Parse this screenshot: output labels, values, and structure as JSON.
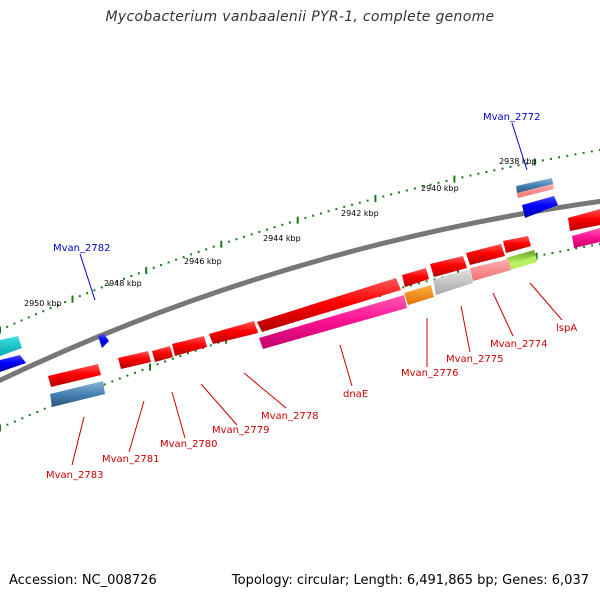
{
  "title": "Mycobacterium vanbaalenii PYR-1, complete genome",
  "footer": {
    "accession": "Accession: NC_008726",
    "summary": "Topology: circular; Length: 6,491,865 bp; Genes: 6,037"
  },
  "scale_labels": [
    "2938 kbp",
    "2940 kbp",
    "2942 kbp",
    "2944 kbp",
    "2946 kbp",
    "2948 kbp",
    "2950 kbp"
  ],
  "gene_labels": [
    {
      "text": "Mvan_2772",
      "color": "#0000cc"
    },
    {
      "text": "Mvan_2782",
      "color": "#0000cc"
    },
    {
      "text": "lspA",
      "color": "#cc0000"
    },
    {
      "text": "Mvan_2774",
      "color": "#cc0000"
    },
    {
      "text": "Mvan_2775",
      "color": "#cc0000"
    },
    {
      "text": "Mvan_2776",
      "color": "#cc0000"
    },
    {
      "text": "dnaE",
      "color": "#cc0000"
    },
    {
      "text": "Mvan_2778",
      "color": "#cc0000"
    },
    {
      "text": "Mvan_2779",
      "color": "#cc0000"
    },
    {
      "text": "Mvan_2780",
      "color": "#cc0000"
    },
    {
      "text": "Mvan_2781",
      "color": "#cc0000"
    },
    {
      "text": "Mvan_2783",
      "color": "#cc0000"
    }
  ],
  "colors": {
    "red_gene": "#ff0000",
    "blue_gene": "#0000ff",
    "pink_gene": "#ff1493",
    "steel_gene": "#4682b4",
    "orange_gene": "#ff8c00",
    "gray_gene": "#c0c0c0",
    "green_gene": "#7ccd3c",
    "backbone": "#777777",
    "ticks": "#1a7a1a"
  }
}
